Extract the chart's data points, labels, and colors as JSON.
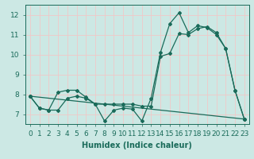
{
  "xlabel": "Humidex (Indice chaleur)",
  "xlim": [
    -0.5,
    23.5
  ],
  "ylim": [
    6.5,
    12.5
  ],
  "yticks": [
    7,
    8,
    9,
    10,
    11,
    12
  ],
  "xticks": [
    0,
    1,
    2,
    3,
    4,
    5,
    6,
    7,
    8,
    9,
    10,
    11,
    12,
    13,
    14,
    15,
    16,
    17,
    18,
    19,
    20,
    21,
    22,
    23
  ],
  "bg_color": "#cce8e4",
  "grid_color": "#f0c8c8",
  "line_color": "#1a6b5a",
  "line1_x": [
    0,
    1,
    2,
    3,
    4,
    5,
    6,
    7,
    8,
    9,
    10,
    11,
    12,
    13,
    14,
    15,
    16,
    17,
    18,
    19,
    20,
    21,
    22,
    23
  ],
  "line1_y": [
    7.9,
    7.3,
    7.2,
    8.1,
    8.2,
    8.2,
    7.85,
    7.5,
    6.65,
    7.2,
    7.3,
    7.25,
    6.65,
    7.8,
    10.1,
    11.55,
    12.1,
    11.1,
    11.45,
    11.35,
    11.0,
    10.3,
    8.2,
    6.75
  ],
  "line2_x": [
    0,
    1,
    2,
    3,
    4,
    5,
    6,
    7,
    8,
    9,
    10,
    11,
    12,
    13,
    14,
    15,
    16,
    17,
    18,
    19,
    20,
    21,
    22,
    23
  ],
  "line2_y": [
    7.9,
    7.3,
    7.2,
    7.2,
    7.8,
    7.9,
    7.8,
    7.5,
    7.5,
    7.5,
    7.5,
    7.5,
    7.4,
    7.4,
    9.9,
    10.05,
    11.05,
    11.0,
    11.3,
    11.4,
    11.1,
    10.3,
    8.2,
    6.75
  ],
  "line3_x": [
    0,
    23
  ],
  "line3_y": [
    7.9,
    6.75
  ],
  "font_size_label": 7,
  "font_size_tick": 6.5
}
